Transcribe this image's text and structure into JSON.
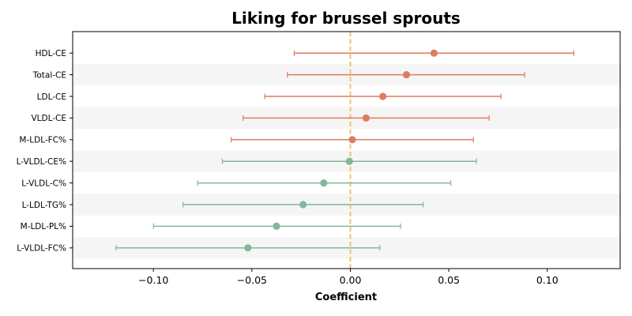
{
  "chart_data": {
    "type": "forest",
    "title": "Liking for brussel sprouts",
    "xlabel": "Coefficient",
    "ylabel": "",
    "xlim": [
      -0.141,
      0.137
    ],
    "xticks": [
      -0.1,
      -0.05,
      0.0,
      0.05,
      0.1
    ],
    "xtick_labels": [
      "−0.10",
      "−0.05",
      "0.00",
      "0.05",
      "0.10"
    ],
    "reference_line": {
      "x": 0,
      "style": "dashed",
      "color": "#f0c878"
    },
    "row_banding": true,
    "colors": {
      "positive": "#dd7c5f",
      "negative": "#82b79b",
      "band": "#f5f5f5"
    },
    "rows": [
      {
        "label": "HDL-CE",
        "coef": 0.0425,
        "ci_low": -0.0285,
        "ci_high": 0.1135
      },
      {
        "label": "Total-CE",
        "coef": 0.0285,
        "ci_low": -0.032,
        "ci_high": 0.0885
      },
      {
        "label": "LDL-CE",
        "coef": 0.0165,
        "ci_low": -0.0435,
        "ci_high": 0.0765
      },
      {
        "label": "VLDL-CE",
        "coef": 0.008,
        "ci_low": -0.0545,
        "ci_high": 0.0705
      },
      {
        "label": "M-LDL-FC%",
        "coef": 0.001,
        "ci_low": -0.0605,
        "ci_high": 0.0625
      },
      {
        "label": "L-VLDL-CE%",
        "coef": -0.0005,
        "ci_low": -0.065,
        "ci_high": 0.064
      },
      {
        "label": "L-VLDL-C%",
        "coef": -0.0135,
        "ci_low": -0.0775,
        "ci_high": 0.051
      },
      {
        "label": "L-LDL-TG%",
        "coef": -0.024,
        "ci_low": -0.085,
        "ci_high": 0.037
      },
      {
        "label": "M-LDL-PL%",
        "coef": -0.0375,
        "ci_low": -0.1,
        "ci_high": 0.0255
      },
      {
        "label": "L-VLDL-FC%",
        "coef": -0.052,
        "ci_low": -0.119,
        "ci_high": 0.015
      }
    ]
  }
}
